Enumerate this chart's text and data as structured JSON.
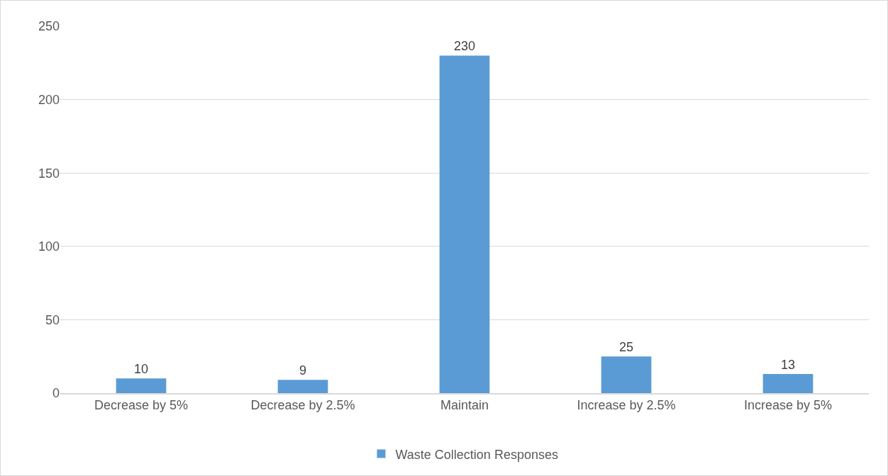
{
  "chart_data": {
    "type": "bar",
    "categories": [
      "Decrease by 5%",
      "Decrease by 2.5%",
      "Maintain",
      "Increase by 2.5%",
      "Increase by 5%"
    ],
    "series": [
      {
        "name": "Waste Collection Responses",
        "color": "#5b9bd5",
        "values": [
          10,
          9,
          230,
          25,
          13
        ]
      }
    ],
    "ylim": [
      0,
      250
    ],
    "yticks": [
      0,
      50,
      100,
      150,
      200,
      250
    ],
    "grid": "y",
    "legend": "bottom",
    "data_labels": true
  }
}
